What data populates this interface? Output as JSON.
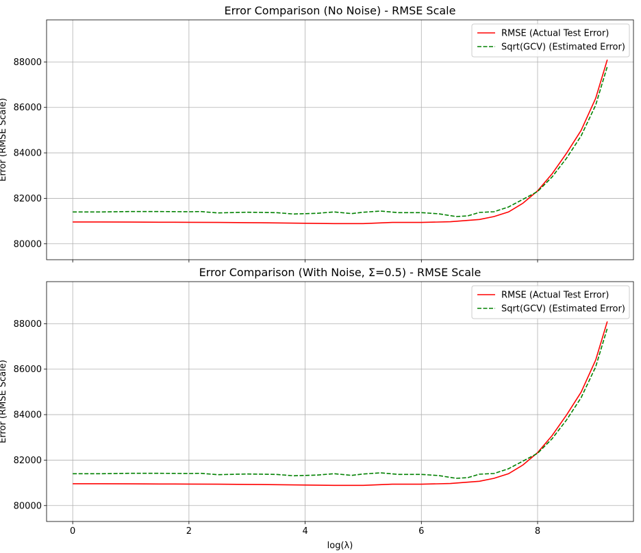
{
  "chart_data": [
    {
      "type": "line",
      "title": "Error Comparison (No Noise) - RMSE Scale",
      "xlabel": "",
      "ylabel": "Error (RMSE Scale)",
      "xlim": [
        -0.45,
        9.65
      ],
      "ylim": [
        79300,
        89850
      ],
      "xticks": [
        0,
        2,
        4,
        6,
        8
      ],
      "xtick_labels": [
        "",
        "",
        "",
        "",
        ""
      ],
      "yticks": [
        80000,
        82000,
        84000,
        86000,
        88000
      ],
      "ytick_labels": [
        "80000",
        "82000",
        "84000",
        "86000",
        "88000"
      ],
      "grid": true,
      "legend": "top-right",
      "series": [
        {
          "name": "RMSE (Actual Test Error)",
          "color": "#ff0000",
          "style": "solid",
          "x": [
            0,
            0.5,
            1,
            1.5,
            2,
            2.5,
            3,
            3.5,
            4,
            4.5,
            5,
            5.5,
            6,
            6.5,
            7,
            7.25,
            7.5,
            7.75,
            8,
            8.25,
            8.5,
            8.75,
            9,
            9.2
          ],
          "y": [
            80960,
            80960,
            80955,
            80950,
            80945,
            80940,
            80930,
            80920,
            80905,
            80890,
            80890,
            80940,
            80940,
            80970,
            81070,
            81200,
            81400,
            81790,
            82330,
            83080,
            83990,
            84990,
            86400,
            88100
          ]
        },
        {
          "name": "Sqrt(GCV) (Estimated Error)",
          "color": "#008000",
          "style": "dashed",
          "x": [
            0,
            0.5,
            1,
            1.5,
            2,
            2.2,
            2.5,
            3,
            3.5,
            3.8,
            4.2,
            4.5,
            4.8,
            5,
            5.3,
            5.6,
            6,
            6.3,
            6.6,
            6.8,
            7,
            7.25,
            7.5,
            7.75,
            8,
            8.25,
            8.5,
            8.75,
            9,
            9.2
          ],
          "y": [
            81400,
            81400,
            81420,
            81420,
            81410,
            81420,
            81360,
            81390,
            81370,
            81310,
            81340,
            81400,
            81330,
            81390,
            81440,
            81370,
            81370,
            81320,
            81200,
            81230,
            81380,
            81410,
            81620,
            81960,
            82300,
            82940,
            83770,
            84750,
            86100,
            87800
          ]
        }
      ]
    },
    {
      "type": "line",
      "title": "Error Comparison (With Noise, Σ=0.5) - RMSE Scale",
      "xlabel": "log(λ)",
      "ylabel": "Error (RMSE Scale)",
      "xlim": [
        -0.45,
        9.65
      ],
      "ylim": [
        79300,
        89850
      ],
      "xticks": [
        0,
        2,
        4,
        6,
        8
      ],
      "xtick_labels": [
        "0",
        "2",
        "4",
        "6",
        "8"
      ],
      "yticks": [
        80000,
        82000,
        84000,
        86000,
        88000
      ],
      "ytick_labels": [
        "80000",
        "82000",
        "84000",
        "86000",
        "88000"
      ],
      "grid": true,
      "legend": "top-right",
      "series": [
        {
          "name": "RMSE (Actual Test Error)",
          "color": "#ff0000",
          "style": "solid",
          "x": [
            0,
            0.5,
            1,
            1.5,
            2,
            2.5,
            3,
            3.5,
            4,
            4.5,
            5,
            5.5,
            6,
            6.5,
            7,
            7.25,
            7.5,
            7.75,
            8,
            8.25,
            8.5,
            8.75,
            9,
            9.2
          ],
          "y": [
            80960,
            80960,
            80955,
            80950,
            80945,
            80940,
            80930,
            80920,
            80905,
            80890,
            80890,
            80940,
            80940,
            80970,
            81070,
            81200,
            81400,
            81790,
            82330,
            83080,
            83990,
            84990,
            86400,
            88100
          ]
        },
        {
          "name": "Sqrt(GCV) (Estimated Error)",
          "color": "#008000",
          "style": "dashed",
          "x": [
            0,
            0.5,
            1,
            1.5,
            2,
            2.2,
            2.5,
            3,
            3.5,
            3.8,
            4.2,
            4.5,
            4.8,
            5,
            5.3,
            5.6,
            6,
            6.3,
            6.6,
            6.8,
            7,
            7.25,
            7.5,
            7.75,
            8,
            8.25,
            8.5,
            8.75,
            9,
            9.2
          ],
          "y": [
            81400,
            81400,
            81420,
            81420,
            81410,
            81420,
            81360,
            81390,
            81370,
            81310,
            81340,
            81400,
            81330,
            81390,
            81440,
            81370,
            81370,
            81320,
            81200,
            81230,
            81380,
            81410,
            81620,
            81960,
            82300,
            82940,
            83770,
            84750,
            86100,
            87800
          ]
        }
      ]
    }
  ]
}
